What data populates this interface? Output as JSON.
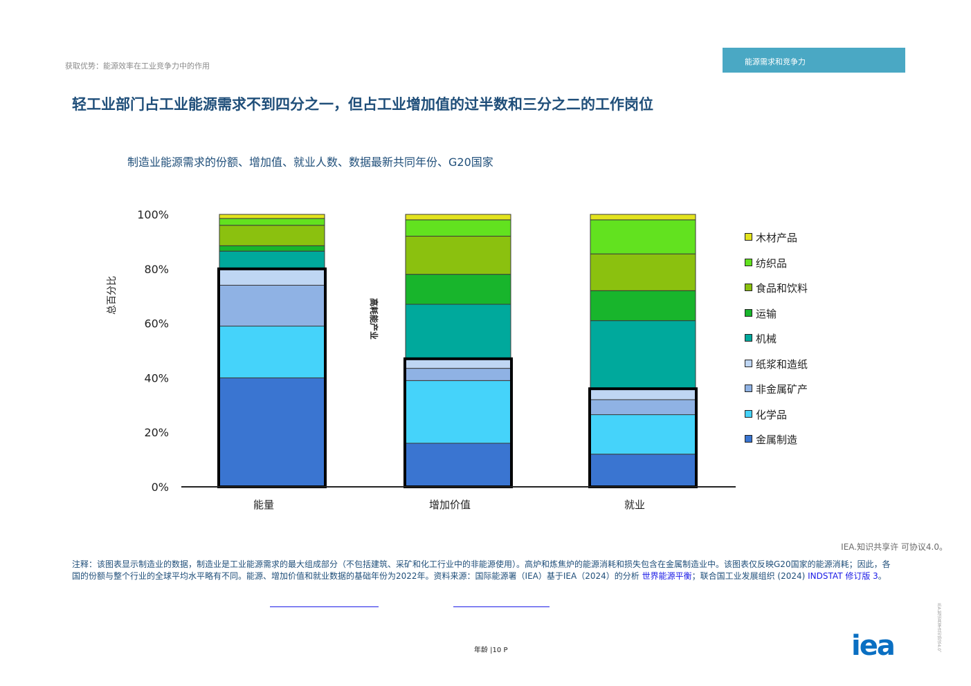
{
  "header": {
    "breadcrumb": "获取优势：能源效率在工业竞争力中的作用",
    "section_tab": "能源需求和竞争力",
    "title": "轻工业部门占工业能源需求不到四分之一，但占工业增加值的过半数和三分之二的工作岗位"
  },
  "chart_data": {
    "type": "bar",
    "stacked": true,
    "title": "制造业能源需求的份额、增加值、就业人数、数据最新共同年份、G20国家",
    "ylabel": "总百分比",
    "xlabel": "",
    "ylim": [
      0,
      100
    ],
    "yticks": [
      "0%",
      "20%",
      "40%",
      "60%",
      "80%",
      "100%"
    ],
    "categories": [
      "能量",
      "增加价值",
      "就业"
    ],
    "annotation": "高耗能产业",
    "energy_intensive_totals": [
      80,
      47,
      36
    ],
    "legend_position": "right",
    "series": [
      {
        "name": "金属制造",
        "color": "#3a75d1",
        "values": [
          40,
          16,
          12
        ]
      },
      {
        "name": "化学品",
        "color": "#45d3fa",
        "values": [
          19,
          23,
          14.5
        ]
      },
      {
        "name": "非金属矿产",
        "color": "#8fb2e4",
        "values": [
          15,
          4.5,
          5.5
        ]
      },
      {
        "name": "纸浆和造纸",
        "color": "#bfd6f3",
        "values": [
          6,
          3.5,
          4
        ]
      },
      {
        "name": "机械",
        "color": "#00a99c",
        "values": [
          6.5,
          20,
          25
        ]
      },
      {
        "name": "运输",
        "color": "#18b52c",
        "values": [
          2,
          11,
          11
        ]
      },
      {
        "name": "食品和饮料",
        "color": "#8bc10f",
        "values": [
          7.5,
          14,
          13.5
        ]
      },
      {
        "name": "纺织品",
        "color": "#62e21f",
        "values": [
          2.5,
          6,
          12.5
        ]
      },
      {
        "name": "木材产品",
        "color": "#e3e31e",
        "values": [
          1.5,
          2,
          2
        ]
      }
    ]
  },
  "footer": {
    "license": "IEA.知识共享许 可协议4.0。",
    "notes_text": "注释：该图表显示制造业的数据，制造业是工业能源需求的最大组成部分（不包括建筑、采矿和化工行业中的非能源使用）。高炉和炼焦炉的能源消耗和损失包含在金属制造业中。该图表仅反映G20国家的能源消耗；因此，各国的份额与整个行业的全球平均水平略有不同。能源、增加价值和就业数据的基础年份为2022年。资料来源：国际能源署（IEA）基于IEA（2024）的分析",
    "notes_link1": "世界能源平衡",
    "notes_text2": "；联合国工业发展组织 (2024)",
    "notes_link2": "INDSTAT 修订版 3",
    "notes_end": "。",
    "page_number": "年龄 |10 P",
    "side_text": "IEA.知识共享许可协议4.0。",
    "logo": "iea"
  }
}
